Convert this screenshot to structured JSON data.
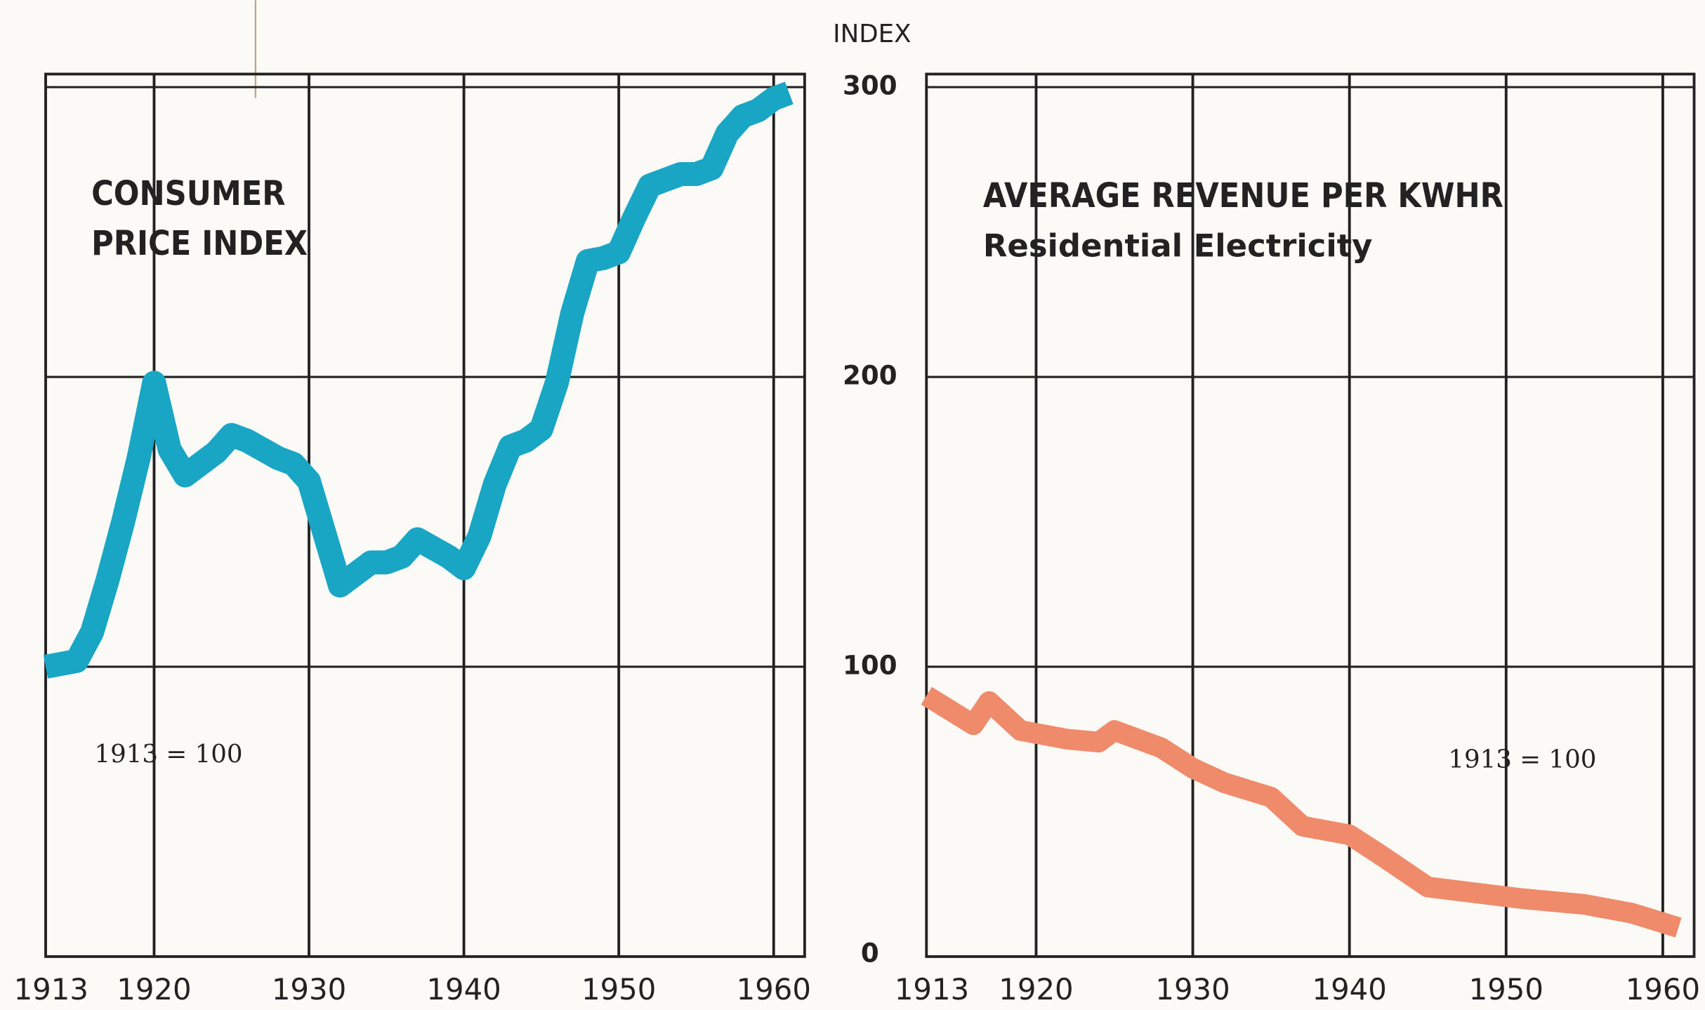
{
  "chart_data": [
    {
      "type": "line",
      "title_lines": [
        "CONSUMER",
        "PRICE INDEX"
      ],
      "annotation": "1913 = 100",
      "x": [
        1913,
        1914,
        1915,
        1916,
        1917,
        1918,
        1919,
        1920,
        1921,
        1922,
        1923,
        1924,
        1925,
        1926,
        1927,
        1928,
        1929,
        1930,
        1931,
        1932,
        1933,
        1934,
        1935,
        1936,
        1937,
        1938,
        1939,
        1940,
        1941,
        1942,
        1943,
        1944,
        1945,
        1946,
        1947,
        1948,
        1949,
        1950,
        1951,
        1952,
        1953,
        1954,
        1955,
        1956,
        1957,
        1958,
        1959,
        1960,
        1961
      ],
      "series": [
        {
          "name": "Consumer Price Index",
          "color": "#19a6c5",
          "values": [
            100,
            101,
            102,
            112,
            130,
            150,
            172,
            198,
            175,
            166,
            170,
            174,
            180,
            178,
            175,
            172,
            170,
            164,
            146,
            128,
            132,
            136,
            136,
            138,
            144,
            141,
            138,
            134,
            145,
            163,
            176,
            178,
            182,
            198,
            222,
            240,
            241,
            243,
            255,
            266,
            268,
            270,
            270,
            272,
            284,
            290,
            292,
            296,
            298
          ]
        }
      ],
      "xlim": [
        1913,
        1962
      ],
      "xticks": [
        1913,
        1920,
        1930,
        1940,
        1950,
        1960
      ],
      "ylim": [
        0,
        300
      ],
      "yticks": [
        0,
        100,
        200,
        300
      ],
      "grid": true
    },
    {
      "type": "line",
      "title": "AVERAGE REVENUE PER KWHR",
      "subtitle": "Residential Electricity",
      "annotation": "1913 = 100",
      "ylabel": "INDEX",
      "x": [
        1913,
        1916,
        1917,
        1919,
        1922,
        1924,
        1925,
        1928,
        1930,
        1932,
        1935,
        1937,
        1940,
        1942,
        1945,
        1948,
        1951,
        1955,
        1958,
        1961
      ],
      "series": [
        {
          "name": "Average Revenue per KWHR",
          "color": "#ef8a6b",
          "values": [
            90,
            80,
            88,
            78,
            75,
            74,
            78,
            72,
            65,
            60,
            55,
            45,
            42,
            35,
            24,
            22,
            20,
            18,
            15,
            10
          ]
        }
      ],
      "xlim": [
        1913,
        1962
      ],
      "xticks": [
        1913,
        1920,
        1930,
        1940,
        1950,
        1960
      ],
      "ylim": [
        0,
        300
      ],
      "yticks": [
        0,
        100,
        200,
        300
      ],
      "grid": true
    }
  ]
}
